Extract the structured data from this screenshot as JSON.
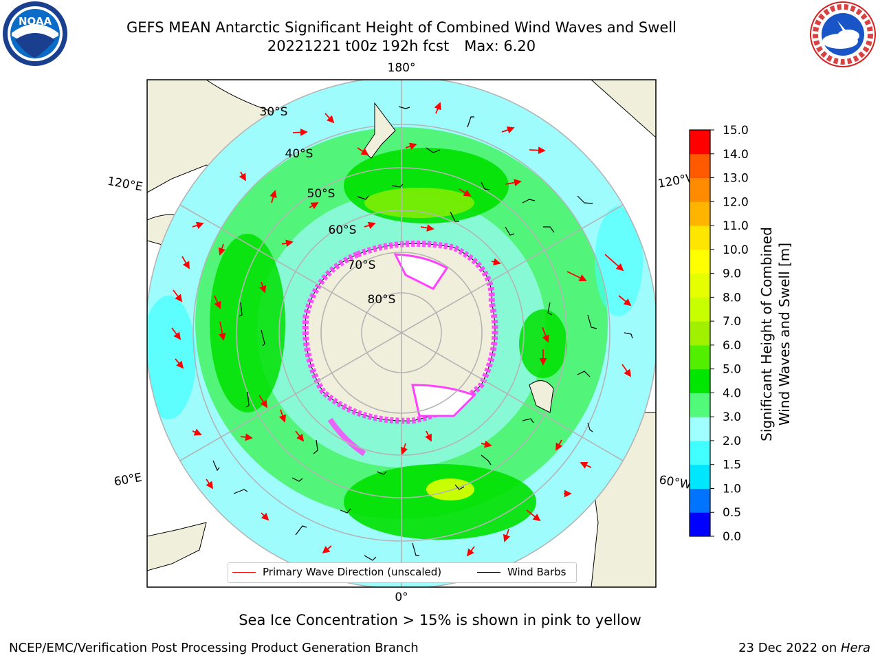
{
  "header": {
    "title": "GEFS MEAN Antarctic Significant Height of Combined Wind Waves and Swell",
    "run": "20221221 t00z 192h fcst",
    "max_label": "Max: 6.20"
  },
  "logos": {
    "left": {
      "name": "NOAA",
      "text": "NOAA"
    },
    "right": {
      "name": "NATIONAL WEATHER SERVICE",
      "text": "NATIONAL WEATHER SERVICE"
    }
  },
  "map": {
    "projection": "south-polar-stereographic",
    "longitude_labels": {
      "top": "180°",
      "bottom": "0°",
      "left_upper": "120°E",
      "left_lower": "60°E",
      "right_upper": "120°W",
      "right_lower": "60°W"
    },
    "latitude_labels": [
      "30°S",
      "40°S",
      "50°S",
      "60°S",
      "70°S",
      "80°S"
    ],
    "colors": {
      "land": "#efefdc",
      "ocean_low": "#9efcfc",
      "ocean_mid": "#52f47a",
      "ocean_high": "#00e100",
      "ice_pink": "#ff40ff",
      "wave_arrow": "#ff0000",
      "wind_barb": "#000000"
    }
  },
  "legend": {
    "wave": "Primary Wave Direction (unscaled)",
    "wind": "Wind Barbs"
  },
  "colorbar": {
    "label_line1": "Significant Height of Combined",
    "label_line2": "Wind Waves and Swell [m]",
    "ticks": [
      "15.0",
      "14.0",
      "13.0",
      "12.0",
      "11.0",
      "10.0",
      "9.0",
      "8.0",
      "7.0",
      "6.0",
      "5.0",
      "4.0",
      "3.0",
      "2.0",
      "1.5",
      "1.0",
      "0.5",
      "0.0"
    ],
    "colors": [
      "#0000ff",
      "#0073ff",
      "#00e6ff",
      "#42ffff",
      "#a0ffff",
      "#52fa7a",
      "#00e600",
      "#52f000",
      "#a0f000",
      "#c8ff00",
      "#e6ff00",
      "#ffff00",
      "#ffe600",
      "#ffb400",
      "#ff8c00",
      "#ff5a00",
      "#ff0000"
    ]
  },
  "footer": {
    "ice_note": "Sea Ice Concentration > 15% is shown in pink to yellow",
    "left": "NCEP/EMC/Verification Post Processing Product Generation Branch",
    "date": "23 Dec 2022 on ",
    "host": "Hera"
  }
}
